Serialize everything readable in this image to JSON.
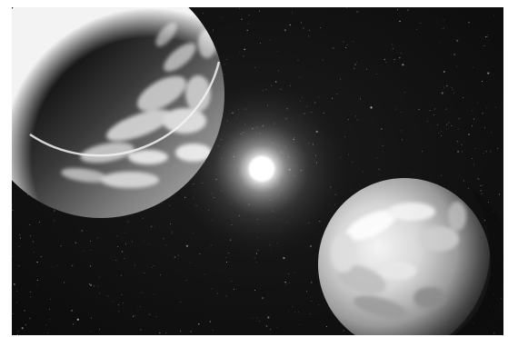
{
  "scene": {
    "subjects": [
      "upper-left-planet",
      "central-star",
      "lower-right-planet",
      "starfield"
    ]
  },
  "colors": {
    "space": "#121212",
    "planet-highlight": "#e8e8e8",
    "star-glow": "#ffffff",
    "frame": "#ffffff"
  }
}
